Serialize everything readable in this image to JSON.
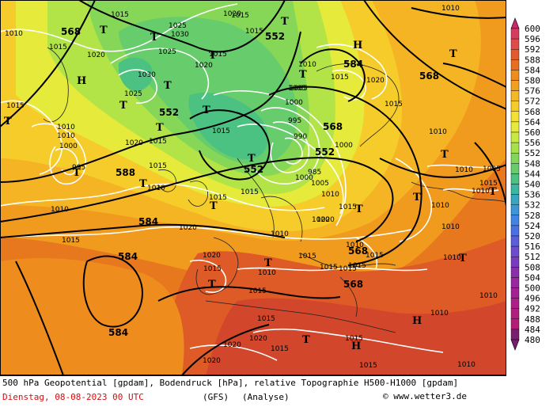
{
  "footer": {
    "title": "500 hPa Geopotential [gpdam], Bodendruck [hPa], relative Topographie H500-H1000 [gpdam]",
    "date": "Dienstag, 08-08-2023  00 UTC",
    "model": "(GFS)",
    "mode": "(Analyse)",
    "copyright": "© www.wetter3.de"
  },
  "legend": {
    "levels": [
      "600",
      "596",
      "592",
      "588",
      "584",
      "580",
      "576",
      "572",
      "568",
      "564",
      "560",
      "556",
      "552",
      "548",
      "544",
      "540",
      "536",
      "532",
      "528",
      "524",
      "520",
      "516",
      "512",
      "508",
      "504",
      "500",
      "496",
      "492",
      "488",
      "484",
      "480"
    ],
    "colors": [
      "#c8286e",
      "#d73c60",
      "#e04a4a",
      "#e25a2e",
      "#e86e22",
      "#ee8c1e",
      "#f2a020",
      "#f4b824",
      "#f6cc2a",
      "#f4e034",
      "#e6ea3a",
      "#c8e842",
      "#a6e04c",
      "#84d65a",
      "#66cc6c",
      "#4cc282",
      "#3cb6a0",
      "#38a6c0",
      "#3c96d8",
      "#4284e4",
      "#4a70e2",
      "#5a5ed8",
      "#6a4ccc",
      "#7a3cbe",
      "#8a2eae",
      "#9a26a0",
      "#a42294",
      "#ac2088",
      "#b01e80",
      "#b41c78",
      "#7a1e6e"
    ]
  },
  "map": {
    "geopotential_labels": [
      "568",
      "552",
      "568",
      "584",
      "584",
      "552",
      "552",
      "568",
      "552",
      "568",
      "588",
      "584",
      "584",
      "568"
    ],
    "pressure_labels": [
      "1010",
      "1015",
      "1015",
      "1020",
      "1025",
      "1030",
      "1025",
      "1030",
      "1015",
      "1020",
      "1025",
      "1015",
      "1010",
      "1010",
      "1015",
      "1020",
      "1000",
      "1010",
      "1010",
      "1000",
      "995",
      "1010",
      "1005",
      "1015",
      "1015",
      "1005",
      "1015",
      "1015",
      "1010",
      "1015",
      "1015",
      "1020",
      "1020",
      "1010",
      "1000",
      "1010",
      "1005",
      "1015",
      "1010",
      "1010",
      "1010",
      "1015",
      "1015",
      "1010",
      "1010",
      "1015",
      "1010",
      "1015",
      "1015",
      "1020",
      "1020",
      "1015",
      "1020",
      "1015",
      "1020",
      "1015",
      "1015",
      "1015",
      "1015",
      "1010",
      "1010",
      "1010",
      "995",
      "990",
      "985",
      "1000",
      "1020",
      "1015",
      "1020",
      "1010",
      "1015",
      "1015",
      "1015",
      "1020",
      "1005",
      "1010"
    ],
    "highs": [
      "H",
      "H",
      "H",
      "H"
    ],
    "lows": [
      "T",
      "T",
      "T",
      "T",
      "T",
      "T",
      "T",
      "T",
      "T",
      "T",
      "T",
      "T",
      "T",
      "T",
      "T",
      "T",
      "T",
      "T",
      "T",
      "T",
      "T",
      "T",
      "T"
    ]
  }
}
